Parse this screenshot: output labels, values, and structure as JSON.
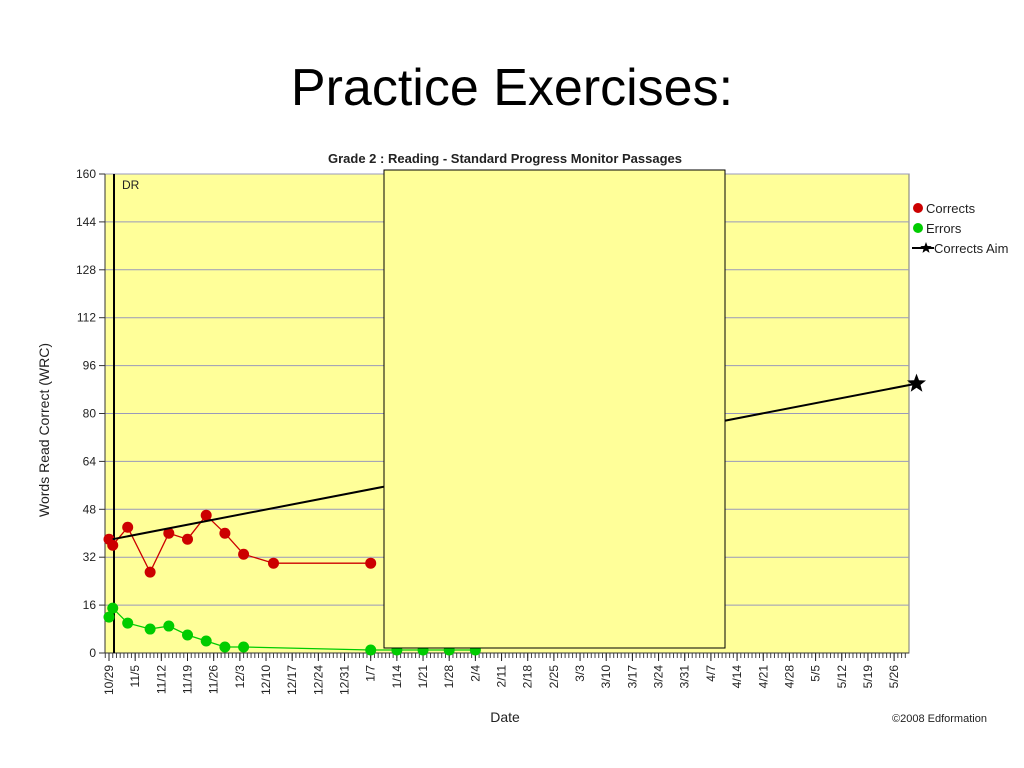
{
  "slide": {
    "title": "Practice Exercises:"
  },
  "chart_data": {
    "type": "line",
    "title": "Grade 2 : Reading - Standard Progress Monitor Passages",
    "xlabel": "Date",
    "ylabel": "Words Read Correct (WRC)",
    "ylim": [
      0,
      160
    ],
    "yticks": [
      0,
      16,
      32,
      48,
      64,
      80,
      96,
      112,
      128,
      144,
      160
    ],
    "x_tick_labels": [
      "10/29",
      "11/5",
      "11/12",
      "11/19",
      "11/26",
      "12/3",
      "12/10",
      "12/17",
      "12/24",
      "12/31",
      "1/7",
      "1/14",
      "1/21",
      "1/28",
      "2/4",
      "2/11",
      "2/18",
      "2/25",
      "3/3",
      "3/10",
      "3/17",
      "3/24",
      "3/31",
      "4/7",
      "4/14",
      "4/21",
      "4/28",
      "5/5",
      "5/12",
      "5/19",
      "5/26"
    ],
    "grid": true,
    "background_color": "#ffff99",
    "legend_position": "right",
    "annotation": "DR",
    "copyright": "©2008 Edformation",
    "occluded_region_color": "#ffff99",
    "series": [
      {
        "name": "Corrects",
        "color": "#cc0000",
        "marker": "circle",
        "x": [
          "10/29",
          "10/30",
          "11/3",
          "11/9",
          "11/14",
          "11/19",
          "11/24",
          "11/29",
          "12/4",
          "12/12",
          "1/7"
        ],
        "values": [
          38,
          36,
          42,
          27,
          40,
          38,
          46,
          40,
          33,
          30,
          30
        ]
      },
      {
        "name": "Errors",
        "color": "#00cc00",
        "marker": "circle",
        "x": [
          "10/29",
          "10/30",
          "11/3",
          "11/9",
          "11/14",
          "11/19",
          "11/24",
          "11/29",
          "12/4",
          "1/7",
          "1/14",
          "1/21",
          "1/28",
          "2/4"
        ],
        "values": [
          12,
          15,
          10,
          8,
          9,
          6,
          4,
          2,
          2,
          1,
          1,
          1,
          1,
          1
        ]
      },
      {
        "name": "Corrects Aim",
        "color": "#000000",
        "marker": "star",
        "x": [
          "10/30",
          "6/1"
        ],
        "values": [
          38,
          90
        ]
      }
    ]
  }
}
